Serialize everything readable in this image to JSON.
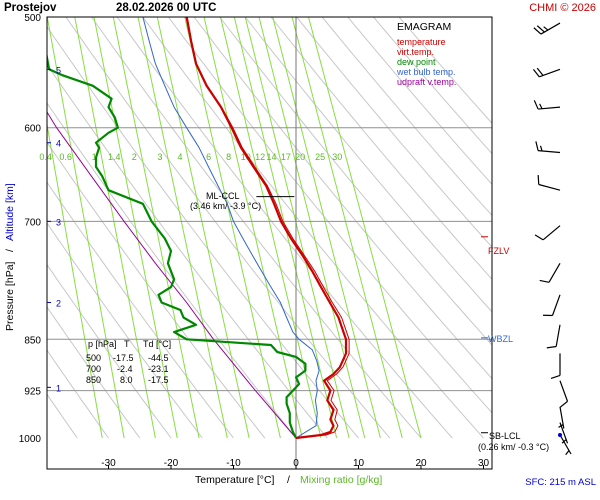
{
  "header": {
    "station": "Prostejov",
    "datetime": "28.02.2026 00 UTC",
    "credit": "CHMI © 2026"
  },
  "footer": {
    "sfc": "SFC: 215 m ASL"
  },
  "colors": {
    "temperature": "#cc0000",
    "virt_temp": "#cc0000",
    "dew_point": "#008800",
    "wet_bulb": "#3366cc",
    "updraft": "#990099",
    "mixing": "#88dd44",
    "dry_adiabat": "#c8c8c8",
    "isobar": "#909090",
    "zero_line": "#777777",
    "fzlv": "#cc0000",
    "wbzl": "#3366cc",
    "altitude": "#0000cc",
    "credit": "#cc0000",
    "footer_text": "#0000cc"
  },
  "chart_data": {
    "type": "line",
    "title": "EMAGRAM",
    "xlabel": "Temperature [°C]",
    "xlabel_sep": "/",
    "xlabel2": "Mixing ratio [g/kg]",
    "ylabel": "Pressure [hPa]",
    "ylabel_sep": "/",
    "ylabel2": "Altitude [km]",
    "xlim": [
      -40,
      30
    ],
    "ylim": [
      1000,
      500
    ],
    "x_ticks": [
      -30,
      -20,
      -10,
      0,
      10,
      20,
      30
    ],
    "x_tick_labels": [
      "-30",
      "-20",
      "-10",
      "0",
      "10",
      "20",
      "30"
    ],
    "pressure_ticks": [
      500,
      600,
      700,
      850,
      925,
      1000
    ],
    "pressure_tick_labels": [
      "500",
      "600",
      "700",
      "850",
      "925",
      "1000"
    ],
    "altitude_ticks": [
      {
        "km": 1,
        "p": 920,
        "label": "1"
      },
      {
        "km": 2,
        "p": 800,
        "label": "2"
      },
      {
        "km": 3,
        "p": 700,
        "label": "3"
      },
      {
        "km": 4,
        "p": 615,
        "label": "4"
      },
      {
        "km": 5,
        "p": 545,
        "label": "5"
      }
    ],
    "mixing_ratio_lines": [
      {
        "label": "0.4",
        "t_bottom": -31.0
      },
      {
        "label": "0.6",
        "t_bottom": -27.5
      },
      {
        "label": "1",
        "t_bottom": -22.5
      },
      {
        "label": "1.4",
        "t_bottom": -19.0
      },
      {
        "label": "2",
        "t_bottom": -15.5
      },
      {
        "label": "3",
        "t_bottom": -11.0
      },
      {
        "label": "4",
        "t_bottom": -7.5
      },
      {
        "label": "6",
        "t_bottom": -2.5
      },
      {
        "label": "8",
        "t_bottom": 1.0
      },
      {
        "label": "10",
        "t_bottom": 4.0
      },
      {
        "label": "12",
        "t_bottom": 6.5
      },
      {
        "label": "14",
        "t_bottom": 8.5
      },
      {
        "label": "17",
        "t_bottom": 11.0
      },
      {
        "label": "20",
        "t_bottom": 13.5
      },
      {
        "label": "25",
        "t_bottom": 17.0
      },
      {
        "label": "30",
        "t_bottom": 20.0
      }
    ],
    "legend": {
      "title": "EMAGRAM",
      "items": [
        {
          "name": "temperature",
          "color": "#cc0000"
        },
        {
          "name": "virt.temp.",
          "color": "#cc0000"
        },
        {
          "name": "dew point",
          "color": "#008800"
        },
        {
          "name": "wet bulb temp.",
          "color": "#3366cc"
        },
        {
          "name": "udpraft v.temp.",
          "color": "#990099"
        }
      ],
      "placement": "top-right"
    },
    "series": [
      {
        "name": "temperature",
        "points": [
          [
            1000,
            0
          ],
          [
            995,
            4
          ],
          [
            990,
            5.5
          ],
          [
            980,
            6
          ],
          [
            970,
            5.5
          ],
          [
            955,
            6
          ],
          [
            940,
            5
          ],
          [
            925,
            5.5
          ],
          [
            910,
            4.5
          ],
          [
            900,
            6
          ],
          [
            890,
            7
          ],
          [
            880,
            7.5
          ],
          [
            870,
            8
          ],
          [
            860,
            8
          ],
          [
            850,
            8
          ],
          [
            840,
            7.6
          ],
          [
            820,
            6.8
          ],
          [
            800,
            5.4
          ],
          [
            780,
            4
          ],
          [
            760,
            2.6
          ],
          [
            740,
            1
          ],
          [
            720,
            -0.8
          ],
          [
            700,
            -2.4
          ],
          [
            680,
            -3.5
          ],
          [
            660,
            -4.8
          ],
          [
            640,
            -6.8
          ],
          [
            620,
            -8.8
          ],
          [
            600,
            -10.3
          ],
          [
            580,
            -12
          ],
          [
            560,
            -14.3
          ],
          [
            540,
            -16
          ],
          [
            520,
            -16.8
          ],
          [
            500,
            -17.5
          ]
        ]
      },
      {
        "name": "virt.temp.",
        "points": [
          [
            1000,
            0.3
          ],
          [
            995,
            4.8
          ],
          [
            990,
            6.2
          ],
          [
            980,
            6.7
          ],
          [
            970,
            6.2
          ],
          [
            955,
            6.6
          ],
          [
            940,
            5.6
          ],
          [
            925,
            6.1
          ],
          [
            910,
            5
          ],
          [
            900,
            6.5
          ],
          [
            890,
            7.5
          ],
          [
            880,
            8
          ],
          [
            870,
            8.5
          ],
          [
            860,
            8.5
          ],
          [
            850,
            8.5
          ],
          [
            840,
            8.1
          ],
          [
            820,
            7.3
          ],
          [
            800,
            5.8
          ],
          [
            780,
            4.4
          ],
          [
            760,
            3
          ],
          [
            740,
            1.3
          ],
          [
            720,
            -0.5
          ],
          [
            700,
            -2.1
          ],
          [
            680,
            -3.2
          ],
          [
            660,
            -4.6
          ],
          [
            640,
            -6.6
          ],
          [
            620,
            -8.6
          ],
          [
            600,
            -10.1
          ],
          [
            580,
            -11.9
          ],
          [
            560,
            -14.2
          ],
          [
            540,
            -15.9
          ],
          [
            520,
            -16.7
          ],
          [
            500,
            -17.4
          ]
        ]
      },
      {
        "name": "dew point",
        "points": [
          [
            1000,
            0
          ],
          [
            990,
            -0.5
          ],
          [
            975,
            -1
          ],
          [
            960,
            -1
          ],
          [
            945,
            -1.5
          ],
          [
            935,
            -1.5
          ],
          [
            925,
            -0.5
          ],
          [
            915,
            0.5
          ],
          [
            905,
            0
          ],
          [
            895,
            1.5
          ],
          [
            885,
            1.5
          ],
          [
            875,
            0
          ],
          [
            868,
            -3
          ],
          [
            858,
            -4
          ],
          [
            850,
            -17.5
          ],
          [
            845,
            -18.5
          ],
          [
            840,
            -19.5
          ],
          [
            830,
            -16
          ],
          [
            820,
            -18
          ],
          [
            810,
            -18.5
          ],
          [
            800,
            -21.5
          ],
          [
            790,
            -22
          ],
          [
            780,
            -20
          ],
          [
            770,
            -19.5
          ],
          [
            750,
            -20.5
          ],
          [
            735,
            -20
          ],
          [
            720,
            -21
          ],
          [
            700,
            -23.1
          ],
          [
            680,
            -24.5
          ],
          [
            665,
            -30
          ],
          [
            650,
            -31
          ],
          [
            640,
            -32
          ],
          [
            630,
            -32
          ],
          [
            620,
            -31.5
          ],
          [
            615,
            -32
          ],
          [
            605,
            -30
          ],
          [
            600,
            -28.5
          ],
          [
            590,
            -29
          ],
          [
            580,
            -30
          ],
          [
            572,
            -29.5
          ],
          [
            560,
            -32.5
          ],
          [
            550,
            -37.5
          ],
          [
            545,
            -39.5
          ],
          [
            530,
            -40
          ],
          [
            500,
            -44.5
          ]
        ]
      },
      {
        "name": "wet bulb temp.",
        "points": [
          [
            1000,
            0
          ],
          [
            980,
            3.2
          ],
          [
            960,
            3.4
          ],
          [
            940,
            3.1
          ],
          [
            925,
            3.4
          ],
          [
            910,
            3.2
          ],
          [
            895,
            3.7
          ],
          [
            880,
            3.3
          ],
          [
            865,
            2.6
          ],
          [
            850,
            0.5
          ],
          [
            840,
            -0.5
          ],
          [
            820,
            -1.5
          ],
          [
            800,
            -2.5
          ],
          [
            780,
            -4
          ],
          [
            760,
            -5.5
          ],
          [
            740,
            -7
          ],
          [
            720,
            -8.5
          ],
          [
            700,
            -10
          ],
          [
            680,
            -11
          ],
          [
            660,
            -12.5
          ],
          [
            640,
            -14
          ],
          [
            620,
            -15.5
          ],
          [
            600,
            -17.5
          ],
          [
            580,
            -19.5
          ],
          [
            560,
            -21
          ],
          [
            540,
            -22.5
          ],
          [
            520,
            -23.5
          ],
          [
            500,
            -24.5
          ]
        ]
      },
      {
        "name": "udpraft v.temp.",
        "points": [
          [
            1000,
            0
          ],
          [
            925,
            -6.5
          ],
          [
            850,
            -13.2
          ],
          [
            800,
            -17.5
          ],
          [
            750,
            -22.5
          ],
          [
            700,
            -27.5
          ],
          [
            650,
            -32.7
          ],
          [
            600,
            -38.3
          ],
          [
            550,
            -43.5
          ],
          [
            500,
            -48.5
          ]
        ]
      }
    ],
    "dry_adiabats_base_temps": [
      -40,
      -35,
      -30,
      -25,
      -20,
      -15,
      -10,
      -5,
      0,
      5,
      10,
      15,
      20,
      25,
      30,
      35,
      40,
      45,
      50,
      55,
      60,
      65,
      70,
      75,
      80
    ],
    "table": {
      "headers": [
        "p [hPa]",
        "T",
        "Td [°C]"
      ],
      "rows": [
        [
          "500",
          "-17.5",
          "-44.5"
        ],
        [
          "700",
          "-2.4",
          "-23.1"
        ],
        [
          "850",
          "8.0",
          "-17.5"
        ]
      ]
    },
    "annotations": {
      "ml_ccl": {
        "label": "ML-CCL",
        "detail": "(3.46 km/ -3.9 °C)",
        "p": 672,
        "t": -2.5
      },
      "sb_lcl": {
        "label": "SB-LCL",
        "detail": "(0.26 km/ -0.3 °C)",
        "p": 993
      },
      "fzlv": {
        "label": "FZLV",
        "p": 718
      },
      "wbzl": {
        "label": "WBZL",
        "p": 848
      }
    },
    "wind_barbs": [
      {
        "p": 505,
        "dir": 240,
        "speed_kt": 25
      },
      {
        "p": 545,
        "dir": 250,
        "speed_kt": 20
      },
      {
        "p": 580,
        "dir": 265,
        "speed_kt": 15
      },
      {
        "p": 625,
        "dir": 275,
        "speed_kt": 15
      },
      {
        "p": 665,
        "dir": 285,
        "speed_kt": 10
      },
      {
        "p": 705,
        "dir": 230,
        "speed_kt": 10
      },
      {
        "p": 750,
        "dir": 210,
        "speed_kt": 10
      },
      {
        "p": 790,
        "dir": 200,
        "speed_kt": 10
      },
      {
        "p": 830,
        "dir": 190,
        "speed_kt": 10
      },
      {
        "p": 870,
        "dir": 180,
        "speed_kt": 10
      },
      {
        "p": 910,
        "dir": 160,
        "speed_kt": 10
      },
      {
        "p": 950,
        "dir": 170,
        "speed_kt": 5
      },
      {
        "p": 975,
        "dir": 160,
        "speed_kt": 5
      },
      {
        "p": 995,
        "dir": 150,
        "speed_kt": 5
      }
    ]
  }
}
